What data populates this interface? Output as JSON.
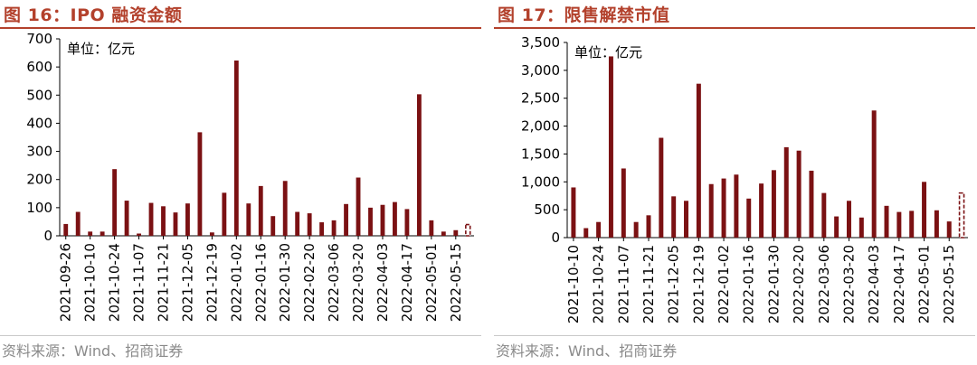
{
  "charts": [
    {
      "title": "图 16：IPO 融资金额",
      "source": "资料来源：Wind、招商证券",
      "chart_data": {
        "type": "bar",
        "title": "图 16：IPO 融资金额",
        "unit_label": "单位：亿元",
        "ylim": [
          0,
          700
        ],
        "yticks": [
          0,
          100,
          200,
          300,
          400,
          500,
          600,
          700
        ],
        "grid": false,
        "bar_color": "#7b1113",
        "dashed_last_bar": true,
        "x_tick_labels": [
          "2021-09-26",
          "2021-10-10",
          "2021-10-24",
          "2021-11-07",
          "2021-11-21",
          "2021-12-05",
          "2021-12-19",
          "2022-01-02",
          "2022-01-16",
          "2022-01-30",
          "2022-02-20",
          "2022-03-06",
          "2022-03-20",
          "2022-04-03",
          "2022-04-17",
          "2022-05-01",
          "2022-05-15"
        ],
        "values": [
          42,
          85,
          15,
          15,
          237,
          125,
          8,
          117,
          105,
          83,
          115,
          368,
          12,
          153,
          623,
          115,
          177,
          70,
          195,
          85,
          80,
          48,
          55,
          113,
          207,
          100,
          110,
          120,
          95,
          503,
          55,
          15,
          20,
          40
        ]
      }
    },
    {
      "title": "图 17：限售解禁市值",
      "source": "资料来源：Wind、招商证券",
      "chart_data": {
        "type": "bar",
        "title": "图 17：限售解禁市值",
        "unit_label": "单位：亿元",
        "ylim": [
          0,
          3500
        ],
        "yticks": [
          0,
          500,
          1000,
          1500,
          2000,
          2500,
          3000,
          3500
        ],
        "ytick_labels": [
          "0",
          "500",
          "1,000",
          "1,500",
          "2,000",
          "2,500",
          "3,000",
          "3,500"
        ],
        "grid": false,
        "bar_color": "#7b1113",
        "dashed_last_bar": true,
        "x_tick_labels": [
          "2021-10-10",
          "2021-10-24",
          "2021-11-07",
          "2021-11-21",
          "2021-12-05",
          "2021-12-19",
          "2022-01-02",
          "2022-01-16",
          "2022-01-30",
          "2022-02-20",
          "2022-03-06",
          "2022-03-20",
          "2022-04-03",
          "2022-04-17",
          "2022-05-01",
          "2022-05-15"
        ],
        "values": [
          900,
          170,
          280,
          3250,
          1240,
          280,
          400,
          1790,
          740,
          660,
          2760,
          960,
          1060,
          1130,
          700,
          970,
          1210,
          1620,
          1560,
          1200,
          800,
          380,
          660,
          360,
          2280,
          570,
          460,
          480,
          1000,
          490,
          290,
          800
        ]
      }
    }
  ]
}
